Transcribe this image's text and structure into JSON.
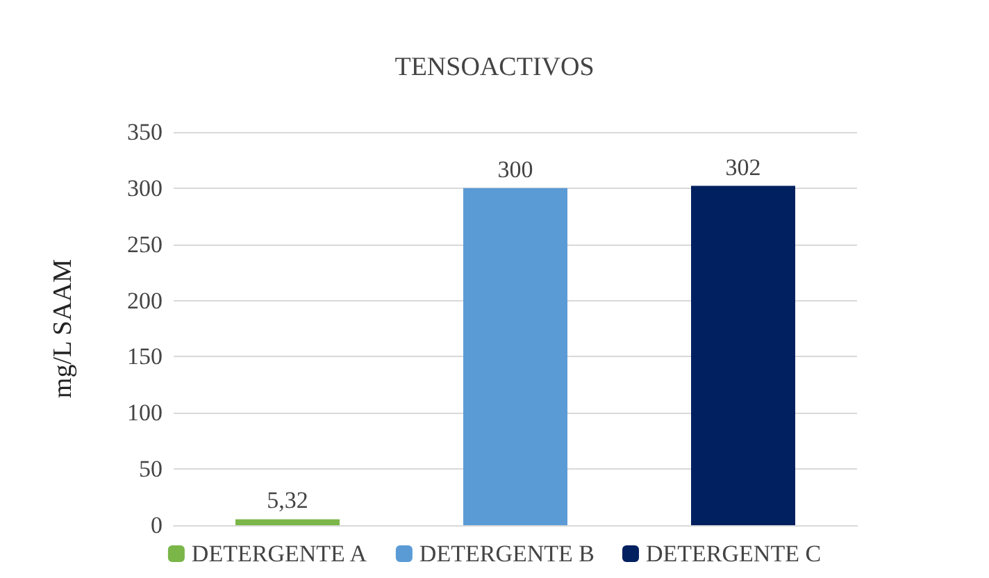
{
  "chart_data": {
    "type": "bar",
    "title": "TENSOACTIVOS",
    "ylabel": "mg/L SAAM",
    "categories": [
      null,
      null,
      null
    ],
    "series": [
      {
        "name": "DETERGENTE A",
        "color": "#7ab648",
        "values": [
          5.32,
          null,
          null
        ],
        "value_labels": [
          "5,32",
          null,
          null
        ]
      },
      {
        "name": "DETERGENTE B",
        "color": "#5b9bd5",
        "values": [
          null,
          300,
          null
        ],
        "value_labels": [
          null,
          "300",
          null
        ]
      },
      {
        "name": "DETERGENTE C",
        "color": "#002060",
        "values": [
          null,
          null,
          302
        ],
        "value_labels": [
          null,
          null,
          "302"
        ]
      }
    ],
    "ylim": [
      0,
      350
    ],
    "yticks": [
      0,
      50,
      100,
      150,
      200,
      250,
      300,
      350
    ],
    "grid": "y",
    "legend": "bottom"
  }
}
